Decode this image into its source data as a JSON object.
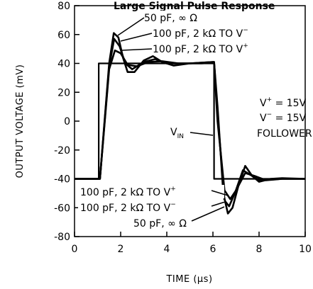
{
  "chart_data": {
    "type": "line",
    "title": "Large Signal Pulse Response",
    "xlabel": "TIME (µs)",
    "ylabel": "OUTPUT VOLTAGE (mV)",
    "xlim": [
      0,
      10
    ],
    "ylim": [
      -80,
      80
    ],
    "x_ticks": [
      "0",
      "2",
      "4",
      "6",
      "8",
      "10"
    ],
    "y_ticks": [
      "80",
      "60",
      "40",
      "20",
      "0",
      "-20",
      "-40",
      "-60",
      "-80"
    ],
    "grid": false,
    "conditions": {
      "vplus": "V+ = 15V",
      "vminus": "V− = 15V",
      "mode": "FOLLOWER"
    },
    "series": [
      {
        "name": "VIN",
        "x": [
          0.0,
          1.05,
          1.05,
          6.05,
          6.05,
          10.0
        ],
        "y": [
          -40,
          -40,
          40,
          40,
          -40,
          -40
        ]
      },
      {
        "name": "50 pF, ∞ Ω",
        "x": [
          0.0,
          1.1,
          1.5,
          1.7,
          1.9,
          2.1,
          2.3,
          2.6,
          3.0,
          3.4,
          3.8,
          4.3,
          5.0,
          6.0,
          6.05,
          6.2,
          6.45,
          6.65,
          6.85,
          7.1,
          7.4,
          7.7,
          8.0,
          8.5,
          9.0,
          10.0
        ],
        "y": [
          -40,
          -40,
          40,
          61,
          58,
          44,
          34,
          34,
          42,
          45,
          41,
          38.5,
          40,
          41,
          41,
          10,
          -50,
          -64,
          -60,
          -45,
          -31,
          -38,
          -42,
          -40,
          -39.5,
          -40
        ]
      },
      {
        "name": "100 pF, 2 kΩ TO V−",
        "x": [
          0.0,
          1.1,
          1.5,
          1.72,
          1.95,
          2.2,
          2.5,
          3.0,
          3.5,
          4.0,
          5.0,
          6.0,
          6.05,
          6.2,
          6.5,
          6.7,
          6.95,
          7.3,
          7.6,
          8.0,
          9.0,
          10.0
        ],
        "y": [
          -40,
          -40,
          38,
          57,
          52,
          40,
          36,
          41,
          43,
          40,
          40,
          41,
          41,
          5,
          -55,
          -59,
          -50,
          -34,
          -37,
          -41,
          -40,
          -40
        ]
      },
      {
        "name": "100 pF, 2 kΩ TO V+",
        "x": [
          0.0,
          1.1,
          1.5,
          1.75,
          2.0,
          2.3,
          2.7,
          3.2,
          3.8,
          4.5,
          5.5,
          6.0,
          6.05,
          6.2,
          6.5,
          6.75,
          7.0,
          7.4,
          7.8,
          8.3,
          9.0,
          10.0
        ],
        "y": [
          -40,
          -40,
          36,
          49,
          47,
          39,
          38,
          41,
          41.5,
          40,
          40,
          40.5,
          40.5,
          0,
          -48,
          -54,
          -48,
          -36,
          -38,
          -41,
          -40,
          -40
        ]
      }
    ],
    "annotations": {
      "top_1": "50 pF, ∞ Ω",
      "top_2": "100 pF, 2 kΩ TO V−",
      "top_3": "100 pF, 2 kΩ TO V+",
      "bottom_1": "100 pF, 2 kΩ TO V+",
      "bottom_2": "100 pF, 2 kΩ TO V−",
      "bottom_3": "50 pF, ∞ Ω",
      "vin": "VIN"
    }
  }
}
